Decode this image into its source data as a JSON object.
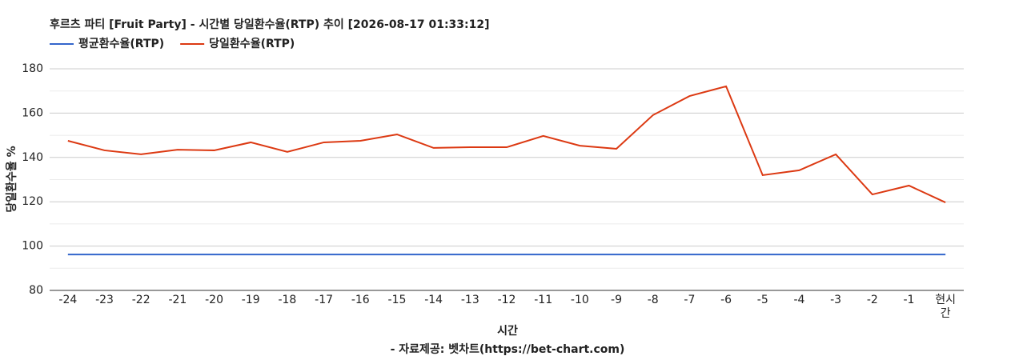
{
  "chart_data": {
    "type": "line",
    "title": "후르츠 파티 [Fruit Party] - 시간별 당일환수율(RTP) 추이 [2026-08-17 01:33:12]",
    "x_label": "시간",
    "y_label": "당일환수율 %",
    "source": "- 자료제공: 벳차트(https://bet-chart.com)",
    "categories": [
      "-24",
      "-23",
      "-22",
      "-21",
      "-20",
      "-19",
      "-18",
      "-17",
      "-16",
      "-15",
      "-14",
      "-13",
      "-12",
      "-11",
      "-10",
      "-9",
      "-8",
      "-7",
      "-6",
      "-5",
      "-4",
      "-3",
      "-2",
      "-1",
      "현시간"
    ],
    "series": [
      {
        "name": "평균환수율(RTP)",
        "color": "#3366cc",
        "values": [
          96.2,
          96.2,
          96.2,
          96.2,
          96.2,
          96.2,
          96.2,
          96.2,
          96.2,
          96.2,
          96.2,
          96.2,
          96.2,
          96.2,
          96.2,
          96.2,
          96.2,
          96.2,
          96.2,
          96.2,
          96.2,
          96.2,
          96.2,
          96.2,
          96.2
        ]
      },
      {
        "name": "당일환수율(RTP)",
        "color": "#dc3912",
        "values": [
          147.5,
          143.2,
          141.4,
          143.5,
          143.2,
          146.8,
          142.5,
          146.8,
          147.5,
          150.4,
          144.3,
          144.6,
          144.6,
          149.7,
          145.3,
          143.9,
          159.1,
          167.7,
          172.1,
          132.0,
          134.2,
          141.4,
          123.3,
          127.3,
          119.7
        ]
      }
    ],
    "ylim": [
      80,
      180
    ],
    "yticks": [
      80,
      100,
      120,
      140,
      160,
      180
    ],
    "minor_yticks": [
      90,
      110,
      130,
      150,
      170
    ],
    "grid": true,
    "legend": "top"
  }
}
